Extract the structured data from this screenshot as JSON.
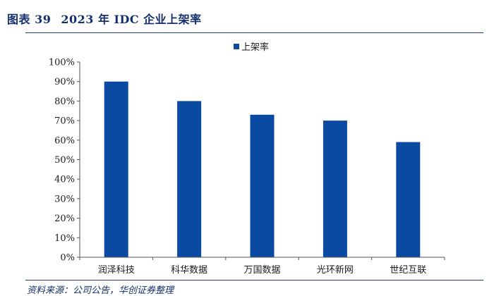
{
  "figure": {
    "label": "图表 39",
    "title": "2023 年 IDC 企业上架率",
    "source": "资料来源：公司公告，华创证券整理"
  },
  "colors": {
    "bar": "#0b4aa2",
    "title": "#14306b",
    "axis": "#555555"
  },
  "chart_data": {
    "type": "bar",
    "categories": [
      "润泽科技",
      "科华数据",
      "万国数据",
      "光环新网",
      "世纪互联"
    ],
    "series": [
      {
        "name": "上架率",
        "values": [
          90,
          80,
          73,
          70,
          59
        ]
      }
    ],
    "ylim": [
      0,
      100
    ],
    "yticks": [
      0,
      10,
      20,
      30,
      40,
      50,
      60,
      70,
      80,
      90,
      100
    ],
    "ytick_labels": [
      "0%",
      "10%",
      "20%",
      "30%",
      "40%",
      "50%",
      "60%",
      "70%",
      "80%",
      "90%",
      "100%"
    ],
    "grid": false,
    "legend": "top-center"
  }
}
